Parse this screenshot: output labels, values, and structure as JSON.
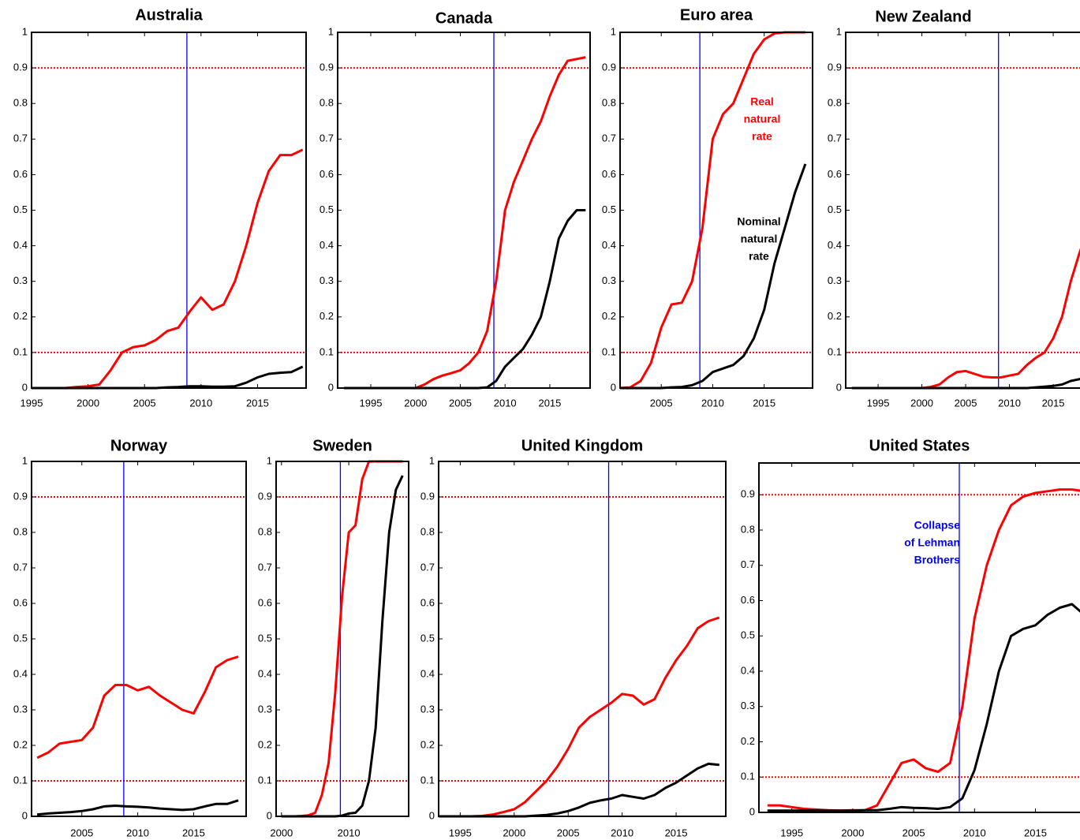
{
  "chart_data": [
    {
      "type": "line",
      "title": "Australia",
      "x": [
        1995,
        1996,
        1997,
        1998,
        1999,
        2000,
        2001,
        2002,
        2003,
        2004,
        2005,
        2006,
        2007,
        2008,
        2009,
        2010,
        2011,
        2012,
        2013,
        2014,
        2015,
        2016,
        2017,
        2018,
        2019
      ],
      "xlim": [
        1995,
        2019.3
      ],
      "xticks": [
        1995,
        2000,
        2005,
        2010,
        2015
      ],
      "ylim": [
        0,
        1
      ],
      "yticks": [
        0,
        0.1,
        0.2,
        0.3,
        0.4,
        0.5,
        0.6,
        0.7,
        0.8,
        0.9,
        1
      ],
      "series": [
        {
          "color": "#ff0000",
          "values": [
            0,
            0,
            0,
            0,
            0.003,
            0.005,
            0.01,
            0.05,
            0.1,
            0.115,
            0.12,
            0.135,
            0.16,
            0.17,
            0.215,
            0.255,
            0.22,
            0.235,
            0.3,
            0.4,
            0.52,
            0.61,
            0.655,
            0.655,
            0.67
          ]
        },
        {
          "color": "#000000",
          "values": [
            0,
            0,
            0,
            0,
            0,
            0,
            0,
            0,
            0,
            0,
            0,
            0,
            0.002,
            0.003,
            0.005,
            0.005,
            0.004,
            0.004,
            0.005,
            0.015,
            0.03,
            0.04,
            0.043,
            0.045,
            0.06
          ]
        }
      ],
      "hlines": [
        0.1,
        0.9
      ],
      "hline_color": "#ff0000",
      "vline": 2008.75,
      "vline_color": "#0000ff"
    },
    {
      "type": "line",
      "title": "Canada",
      "x": [
        1992,
        1993,
        1994,
        1995,
        1996,
        1997,
        1998,
        1999,
        2000,
        2001,
        2002,
        2003,
        2004,
        2005,
        2006,
        2007,
        2008,
        2009,
        2010,
        2011,
        2012,
        2013,
        2014,
        2015,
        2016,
        2017,
        2018,
        2019
      ],
      "xlim": [
        1991.3,
        2019.5
      ],
      "xticks": [
        1995,
        2000,
        2005,
        2010,
        2015
      ],
      "ylim": [
        0,
        1
      ],
      "yticks": [
        0,
        0.1,
        0.2,
        0.3,
        0.4,
        0.5,
        0.6,
        0.7,
        0.8,
        0.9,
        1
      ],
      "series": [
        {
          "color": "#ff0000",
          "values": [
            0,
            0,
            0,
            0,
            0,
            0,
            0,
            0,
            0,
            0.01,
            0.025,
            0.035,
            0.042,
            0.05,
            0.07,
            0.1,
            0.16,
            0.3,
            0.5,
            0.58,
            0.64,
            0.7,
            0.75,
            0.82,
            0.88,
            0.92,
            0.925,
            0.93
          ]
        },
        {
          "color": "#000000",
          "values": [
            0,
            0,
            0,
            0,
            0,
            0,
            0,
            0,
            0,
            0,
            0,
            0,
            0,
            0,
            0,
            0,
            0.002,
            0.02,
            0.06,
            0.085,
            0.11,
            0.15,
            0.2,
            0.3,
            0.42,
            0.47,
            0.5,
            0.5
          ]
        }
      ],
      "hlines": [
        0.1,
        0.9
      ],
      "hline_color": "#ff0000",
      "vline": 2008.75,
      "vline_color": "#0000ff"
    },
    {
      "type": "line",
      "title": "Euro area",
      "x": [
        2001,
        2002,
        2003,
        2004,
        2005,
        2006,
        2007,
        2008,
        2009,
        2010,
        2011,
        2012,
        2013,
        2014,
        2015,
        2016,
        2017,
        2018,
        2019
      ],
      "xlim": [
        2001,
        2019.7
      ],
      "xticks": [
        2005,
        2010,
        2015
      ],
      "ylim": [
        0,
        1
      ],
      "yticks": [
        0,
        0.1,
        0.2,
        0.3,
        0.4,
        0.5,
        0.6,
        0.7,
        0.8,
        0.9,
        1
      ],
      "series": [
        {
          "color": "#ff0000",
          "values": [
            0,
            0.002,
            0.02,
            0.07,
            0.17,
            0.235,
            0.24,
            0.3,
            0.45,
            0.7,
            0.77,
            0.8,
            0.87,
            0.94,
            0.98,
            0.997,
            1,
            1,
            1
          ]
        },
        {
          "color": "#000000",
          "values": [
            0,
            0,
            0,
            0,
            0,
            0.002,
            0.003,
            0.008,
            0.02,
            0.045,
            0.055,
            0.065,
            0.09,
            0.14,
            0.22,
            0.35,
            0.45,
            0.55,
            0.63
          ]
        }
      ],
      "hlines": [
        0.1,
        0.9
      ],
      "hline_color": "#ff0000",
      "vline": 2008.75,
      "vline_color": "#0000ff",
      "annotations": [
        {
          "lines": [
            "Real",
            "natural",
            "rate"
          ],
          "color": "#ff0000"
        },
        {
          "lines": [
            "Nominal",
            "natural",
            "rate"
          ],
          "color": "#000000"
        }
      ]
    },
    {
      "type": "line",
      "title": "New Zealand",
      "x": [
        1992,
        1993,
        1994,
        1995,
        1996,
        1997,
        1998,
        1999,
        2000,
        2001,
        2002,
        2003,
        2004,
        2005,
        2006,
        2007,
        2008,
        2009,
        2010,
        2011,
        2012,
        2013,
        2014,
        2015,
        2016,
        2017,
        2018,
        2019
      ],
      "xlim": [
        1991.3,
        2019.5
      ],
      "xticks": [
        1995,
        2000,
        2005,
        2010,
        2015
      ],
      "ylim": [
        0,
        1
      ],
      "yticks": [
        0,
        0.1,
        0.2,
        0.3,
        0.4,
        0.5,
        0.6,
        0.7,
        0.8,
        0.9,
        1
      ],
      "series": [
        {
          "color": "#ff0000",
          "values": [
            0,
            0,
            0,
            0,
            0,
            0,
            0,
            0,
            0,
            0.003,
            0.01,
            0.03,
            0.045,
            0.048,
            0.04,
            0.032,
            0.03,
            0.03,
            0.035,
            0.04,
            0.065,
            0.085,
            0.1,
            0.14,
            0.2,
            0.3,
            0.38,
            0.45
          ]
        },
        {
          "color": "#000000",
          "values": [
            0,
            0,
            0,
            0,
            0,
            0,
            0,
            0,
            0,
            0,
            0,
            0,
            0,
            0,
            0,
            0,
            0,
            0,
            0,
            0,
            0,
            0.002,
            0.004,
            0.006,
            0.01,
            0.02,
            0.025,
            0.03
          ]
        }
      ],
      "hlines": [
        0.1,
        0.9
      ],
      "hline_color": "#ff0000",
      "vline": 2008.75,
      "vline_color": "#0000ff"
    },
    {
      "type": "line",
      "title": "Norway",
      "x": [
        2001,
        2002,
        2003,
        2004,
        2005,
        2006,
        2007,
        2008,
        2009,
        2010,
        2011,
        2012,
        2013,
        2014,
        2015,
        2016,
        2017,
        2018,
        2019
      ],
      "xlim": [
        2000.5,
        2019.7
      ],
      "xticks": [
        2005,
        2010,
        2015
      ],
      "ylim": [
        0,
        1
      ],
      "yticks": [
        0,
        0.1,
        0.2,
        0.3,
        0.4,
        0.5,
        0.6,
        0.7,
        0.8,
        0.9,
        1
      ],
      "series": [
        {
          "color": "#ff0000",
          "values": [
            0.165,
            0.18,
            0.205,
            0.21,
            0.215,
            0.25,
            0.34,
            0.37,
            0.37,
            0.355,
            0.365,
            0.34,
            0.32,
            0.3,
            0.29,
            0.35,
            0.42,
            0.44,
            0.45
          ]
        },
        {
          "color": "#000000",
          "values": [
            0.005,
            0.008,
            0.01,
            0.012,
            0.015,
            0.02,
            0.028,
            0.03,
            0.028,
            0.027,
            0.025,
            0.022,
            0.02,
            0.018,
            0.02,
            0.028,
            0.035,
            0.035,
            0.045
          ]
        }
      ],
      "hlines": [
        0.1,
        0.9
      ],
      "hline_color": "#ff0000",
      "vline": 2008.75,
      "vline_color": "#0000ff"
    },
    {
      "type": "line",
      "title": "Sweden",
      "x": [
        2000,
        2001,
        2002,
        2003,
        2004,
        2005,
        2006,
        2007,
        2008,
        2009,
        2010,
        2011,
        2012,
        2013,
        2014,
        2015,
        2016,
        2017,
        2018
      ],
      "xlim": [
        1999.2,
        2018.9
      ],
      "xticks": [
        2000,
        2010
      ],
      "ylim": [
        0,
        1
      ],
      "yticks": [
        0,
        0.1,
        0.2,
        0.3,
        0.4,
        0.5,
        0.6,
        0.7,
        0.8,
        0.9,
        1
      ],
      "series": [
        {
          "color": "#ff0000",
          "values": [
            0,
            0,
            0,
            0.001,
            0.003,
            0.01,
            0.06,
            0.15,
            0.35,
            0.62,
            0.8,
            0.82,
            0.95,
            1,
            1,
            1,
            1,
            1,
            1
          ]
        },
        {
          "color": "#000000",
          "values": [
            0,
            0,
            0,
            0,
            0,
            0,
            0,
            0,
            0,
            0.002,
            0.008,
            0.01,
            0.03,
            0.1,
            0.25,
            0.55,
            0.8,
            0.92,
            0.96
          ]
        }
      ],
      "hlines": [
        0.1,
        0.9
      ],
      "hline_color": "#ff0000",
      "vline": 2008.75,
      "vline_color": "#0000ff"
    },
    {
      "type": "line",
      "title": "United Kingdom",
      "x": [
        1993,
        1994,
        1995,
        1996,
        1997,
        1998,
        1999,
        2000,
        2001,
        2002,
        2003,
        2004,
        2005,
        2006,
        2007,
        2008,
        2009,
        2010,
        2011,
        2012,
        2013,
        2014,
        2015,
        2016,
        2017,
        2018,
        2019
      ],
      "xlim": [
        1993,
        2019.6
      ],
      "xticks": [
        1995,
        2000,
        2005,
        2010,
        2015
      ],
      "ylim": [
        0,
        1
      ],
      "yticks": [
        0,
        0.1,
        0.2,
        0.3,
        0.4,
        0.5,
        0.6,
        0.7,
        0.8,
        0.9,
        1
      ],
      "series": [
        {
          "color": "#ff0000",
          "values": [
            0,
            0,
            0,
            0,
            0.001,
            0.005,
            0.012,
            0.02,
            0.04,
            0.07,
            0.1,
            0.14,
            0.19,
            0.25,
            0.28,
            0.3,
            0.32,
            0.345,
            0.34,
            0.315,
            0.33,
            0.39,
            0.44,
            0.48,
            0.53,
            0.55,
            0.56
          ]
        },
        {
          "color": "#000000",
          "values": [
            0,
            0,
            0,
            0,
            0,
            0,
            0,
            0,
            0,
            0.002,
            0.004,
            0.008,
            0.015,
            0.025,
            0.038,
            0.045,
            0.05,
            0.06,
            0.055,
            0.05,
            0.06,
            0.08,
            0.095,
            0.115,
            0.135,
            0.148,
            0.145
          ]
        }
      ],
      "hlines": [
        0.1,
        0.9
      ],
      "hline_color": "#ff0000",
      "vline": 2008.75,
      "vline_color": "#0000ff"
    },
    {
      "type": "line",
      "title": "United States",
      "x": [
        1993,
        1994,
        1995,
        1996,
        1997,
        1998,
        1999,
        2000,
        2001,
        2002,
        2003,
        2004,
        2005,
        2006,
        2007,
        2008,
        2009,
        2010,
        2011,
        2012,
        2013,
        2014,
        2015,
        2016,
        2017,
        2018,
        2019
      ],
      "xlim": [
        1992.3,
        2019.5
      ],
      "xticks": [
        1995,
        2000,
        2005,
        2010,
        2015
      ],
      "ylim": [
        0,
        0.99
      ],
      "yticks": [
        0,
        0.1,
        0.2,
        0.3,
        0.4,
        0.5,
        0.6,
        0.7,
        0.8,
        0.9
      ],
      "series": [
        {
          "color": "#ff0000",
          "values": [
            0.02,
            0.02,
            0.015,
            0.01,
            0.008,
            0.006,
            0.005,
            0.006,
            0.006,
            0.02,
            0.08,
            0.14,
            0.15,
            0.125,
            0.115,
            0.14,
            0.3,
            0.55,
            0.7,
            0.8,
            0.87,
            0.895,
            0.905,
            0.91,
            0.915,
            0.915,
            0.91
          ]
        },
        {
          "color": "#000000",
          "values": [
            0.005,
            0.005,
            0.005,
            0.005,
            0.005,
            0.005,
            0.005,
            0.005,
            0.006,
            0.006,
            0.01,
            0.015,
            0.013,
            0.012,
            0.01,
            0.015,
            0.04,
            0.12,
            0.25,
            0.4,
            0.5,
            0.52,
            0.53,
            0.56,
            0.58,
            0.59,
            0.56
          ]
        }
      ],
      "hlines": [
        0.1,
        0.9
      ],
      "hline_color": "#ff0000",
      "vline": 2008.75,
      "vline_color": "#0000ff",
      "annotations": [
        {
          "lines": [
            "Collapse",
            "of Lehman",
            "Brothers"
          ],
          "color": "#0000ff"
        }
      ]
    }
  ]
}
